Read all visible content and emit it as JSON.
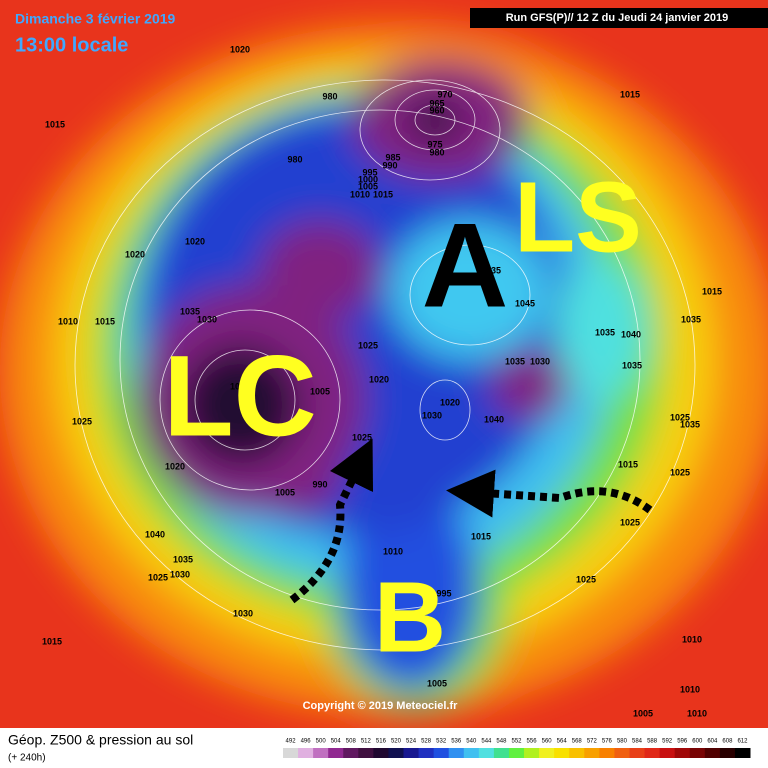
{
  "header": {
    "date": "Dimanche 3 février 2019",
    "time": "13:00 locale",
    "run": "Run GFS(P)// 12 Z du Jeudi 24 janvier 2019"
  },
  "annotations": {
    "anticyclone": "A",
    "ls": "LS",
    "lc": "LC",
    "low": "B"
  },
  "copyright": "Copyright © 2019 Meteociel.fr",
  "footer": {
    "title": "Géop. Z500 & pression au sol",
    "lead": "(+ 240h)"
  },
  "pressure_labels": [
    1020,
    1015,
    980,
    970,
    965,
    960,
    975,
    980,
    985,
    990,
    995,
    1000,
    1005,
    1010,
    1015,
    980,
    1020,
    1020,
    1010,
    1015,
    1035,
    1030,
    1025,
    1020,
    1005,
    1000,
    1025,
    1025,
    1020,
    1005,
    990,
    1035,
    1045,
    1035,
    1030,
    1020,
    1030,
    1040,
    1035,
    1040,
    1035,
    1015,
    1035,
    1015,
    1025,
    1035,
    1015,
    1025,
    1025,
    1015,
    1010,
    995,
    1025,
    1040,
    1035,
    1030,
    1025,
    1030,
    1015,
    1005,
    1010,
    1010,
    1005,
    1010
  ],
  "legend": {
    "values": [
      492,
      496,
      500,
      504,
      508,
      512,
      516,
      520,
      524,
      528,
      532,
      536,
      540,
      544,
      548,
      552,
      556,
      560,
      564,
      568,
      572,
      576,
      580,
      584,
      588,
      592,
      596,
      600,
      604,
      608,
      612
    ],
    "colors": [
      "#d8d8d8",
      "#e0b0e0",
      "#c070c0",
      "#902890",
      "#601860",
      "#401040",
      "#200830",
      "#101050",
      "#181890",
      "#2030c0",
      "#2050e0",
      "#3090f0",
      "#40c0f0",
      "#50e0e0",
      "#40e090",
      "#60f040",
      "#b0f020",
      "#f0f020",
      "#f8e000",
      "#f8c000",
      "#f8a000",
      "#f88000",
      "#f06010",
      "#e84018",
      "#e02818",
      "#c81010",
      "#a00808",
      "#780404",
      "#500000",
      "#280000",
      "#000000"
    ]
  }
}
